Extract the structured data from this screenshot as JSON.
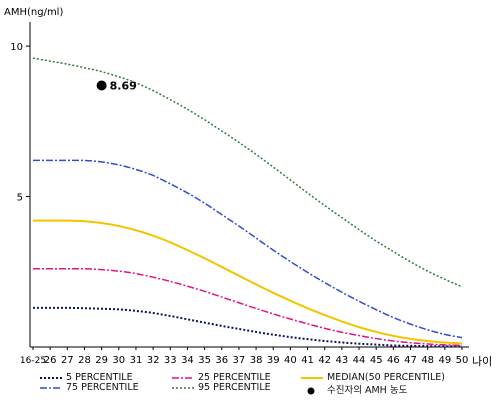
{
  "chart_data": {
    "type": "line",
    "ylabel": "AMH(ng/ml)",
    "xlabel": "나이",
    "yticks": [
      5,
      10
    ],
    "ylim": [
      0,
      10.8
    ],
    "x_categories": [
      "16-25",
      "26",
      "27",
      "28",
      "29",
      "30",
      "31",
      "32",
      "33",
      "34",
      "35",
      "36",
      "37",
      "38",
      "39",
      "40",
      "41",
      "42",
      "43",
      "44",
      "45",
      "46",
      "47",
      "48",
      "49",
      "50"
    ],
    "series": [
      {
        "name": "5 PERCENTILE",
        "color": "#0a1560",
        "dash": "2,2",
        "width": 2,
        "values": [
          1.3,
          1.3,
          1.3,
          1.29,
          1.27,
          1.25,
          1.2,
          1.13,
          1.03,
          0.92,
          0.81,
          0.7,
          0.6,
          0.5,
          0.41,
          0.33,
          0.26,
          0.2,
          0.15,
          0.11,
          0.08,
          0.05,
          0.04,
          0.03,
          0.02,
          0.02
        ]
      },
      {
        "name": "75 PERCENTILE",
        "color": "#2f4fd0",
        "dash": "7,2,2,2",
        "width": 1.5,
        "values": [
          6.2,
          6.2,
          6.2,
          6.2,
          6.15,
          6.05,
          5.9,
          5.7,
          5.42,
          5.12,
          4.78,
          4.4,
          4.02,
          3.62,
          3.22,
          2.84,
          2.48,
          2.14,
          1.82,
          1.52,
          1.24,
          0.98,
          0.76,
          0.57,
          0.42,
          0.31
        ]
      },
      {
        "name": "25 PERCENTILE",
        "color": "#e0148c",
        "dash": "7,2,2,2",
        "width": 1.5,
        "values": [
          2.6,
          2.6,
          2.6,
          2.6,
          2.57,
          2.52,
          2.44,
          2.32,
          2.18,
          2.02,
          1.85,
          1.66,
          1.47,
          1.28,
          1.1,
          0.93,
          0.77,
          0.62,
          0.49,
          0.38,
          0.28,
          0.2,
          0.14,
          0.1,
          0.07,
          0.05
        ]
      },
      {
        "name": "95 PERCENTILE",
        "color": "#2d7d3c",
        "dash": "2,2",
        "width": 1.5,
        "values": [
          9.6,
          9.5,
          9.4,
          9.28,
          9.15,
          8.98,
          8.78,
          8.52,
          8.22,
          7.9,
          7.55,
          7.18,
          6.8,
          6.4,
          5.98,
          5.55,
          5.12,
          4.7,
          4.3,
          3.9,
          3.52,
          3.17,
          2.83,
          2.52,
          2.25,
          2.0
        ]
      },
      {
        "name": "MEDIAN(50 PERCENTILE)",
        "color": "#f2c500",
        "dash": "",
        "width": 2,
        "values": [
          4.2,
          4.2,
          4.2,
          4.18,
          4.12,
          4.02,
          3.88,
          3.7,
          3.48,
          3.22,
          2.95,
          2.66,
          2.37,
          2.08,
          1.8,
          1.54,
          1.29,
          1.06,
          0.85,
          0.66,
          0.5,
          0.37,
          0.27,
          0.2,
          0.15,
          0.12
        ]
      }
    ],
    "point": {
      "name": "수진자의 AMH 농도",
      "x": "29",
      "y": 8.69,
      "label": "8.69",
      "color": "#000000"
    }
  },
  "legend": [
    {
      "label": "5 PERCENTILE",
      "color": "#0a1560",
      "dash": "2,2",
      "width": 2
    },
    {
      "label": "25 PERCENTILE",
      "color": "#e0148c",
      "dash": "7,2,2,2",
      "width": 1.5
    },
    {
      "label": "MEDIAN(50 PERCENTILE)",
      "color": "#f2c500",
      "dash": "",
      "width": 2
    },
    {
      "label": "75 PERCENTILE",
      "color": "#2f4fd0",
      "dash": "7,2,2,2",
      "width": 1.5
    },
    {
      "label": "95 PERCENTILE",
      "color": "#2d7d3c",
      "dash": "2,2",
      "width": 1.5
    },
    {
      "label": "수진자의 AMH 농도",
      "color": "#000000",
      "marker": "dot"
    }
  ]
}
